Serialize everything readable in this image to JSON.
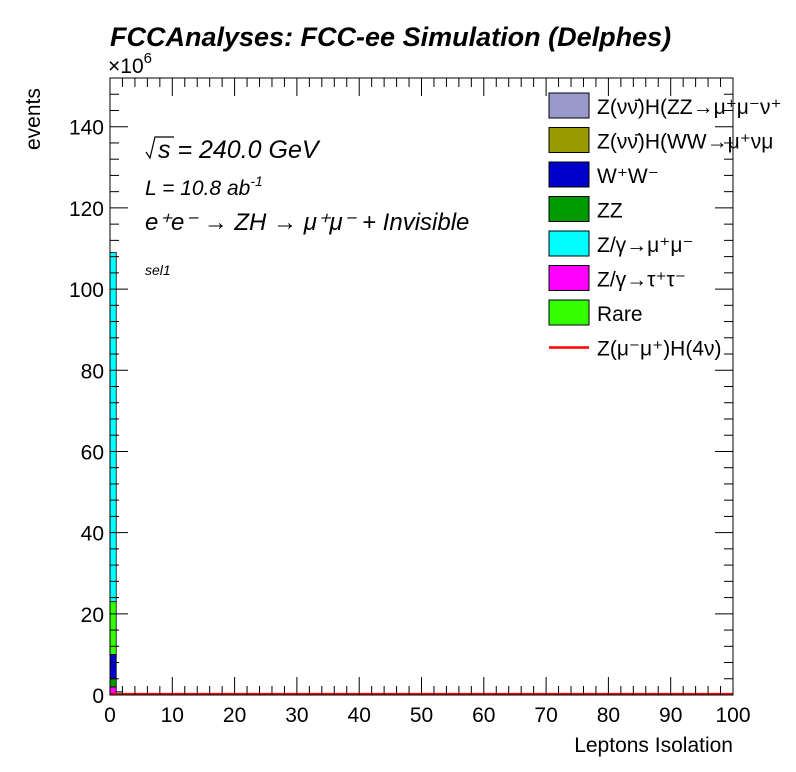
{
  "chart_data": {
    "type": "bar",
    "title": "FCCAnalyses: FCC-ee Simulation (Delphes)",
    "xlabel": "Leptons Isolation",
    "ylabel": "events",
    "y_exponent_label": "×10",
    "y_exponent": "6",
    "xlim": [
      0,
      100
    ],
    "ylim": [
      0,
      152
    ],
    "x_ticks": [
      "0",
      "10",
      "20",
      "30",
      "40",
      "50",
      "60",
      "70",
      "80",
      "90",
      "100"
    ],
    "y_ticks": [
      "0",
      "20",
      "40",
      "60",
      "80",
      "100",
      "120",
      "140"
    ],
    "y_unit_scale": 1000000,
    "annotations": {
      "sqrt_s": "s = 240.0 GeV",
      "lumi": "L = 10.8 ab",
      "lumi_sup": "-1",
      "process": "e⁺e⁻ → ZH → μ⁺μ⁻ + Invisible",
      "selection": "sel1"
    },
    "stacked_bins": [
      {
        "x0": 0,
        "x1": 1,
        "stack": [
          {
            "series": "Z/γ→τ⁺τ⁻",
            "value": 2.0
          },
          {
            "series": "ZZ",
            "value": 2.0
          },
          {
            "series": "W⁺W⁻",
            "value": 6.0
          },
          {
            "series": "Rare",
            "value": 13.0
          },
          {
            "series": "Z/γ→μ⁺μ⁻",
            "value": 86.0
          }
        ]
      },
      {
        "x0": 1,
        "x1": 2,
        "stack": [
          {
            "series": "Z/γ→μ⁺μ⁻",
            "value": 0.8
          }
        ]
      },
      {
        "x0": 2,
        "x1": 3,
        "stack": [
          {
            "series": "Z/γ→μ⁺μ⁻",
            "value": 0.4
          }
        ]
      }
    ],
    "signal_line": {
      "series": "Z(μ⁻μ⁺)H(4ν)",
      "value": 0.0
    },
    "legend": {
      "placement": "top-right",
      "entries": [
        {
          "label": "Z(νν̄)H(ZZ→μ⁺μ⁻ν⁺",
          "color": "#9999cc",
          "kind": "box"
        },
        {
          "label": "Z(νν̄)H(WW→μ⁺νμ",
          "color": "#999900",
          "kind": "box"
        },
        {
          "label": "W⁺W⁻",
          "color": "#0000cc",
          "kind": "box"
        },
        {
          "label": "ZZ",
          "color": "#009900",
          "kind": "box"
        },
        {
          "label": "Z/γ→μ⁺μ⁻",
          "color": "#00ffff",
          "kind": "box"
        },
        {
          "label": "Z/γ→τ⁺τ⁻",
          "color": "#ff00ff",
          "kind": "box"
        },
        {
          "label": "Rare",
          "color": "#33ff00",
          "kind": "box"
        },
        {
          "label": "Z(μ⁻μ⁺)H(4ν)",
          "color": "#ff0000",
          "kind": "line"
        }
      ]
    },
    "grid": false
  }
}
